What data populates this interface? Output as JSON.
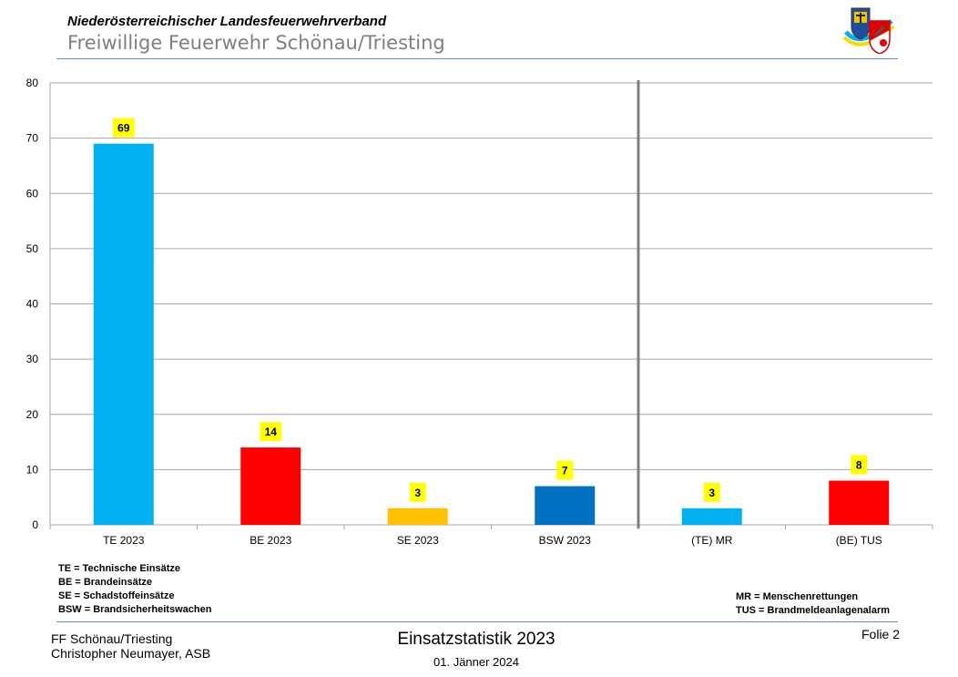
{
  "header": {
    "organization": "Niederösterreichischer  Landesfeuerwehrverband",
    "unit": "Freiwillige Feuerwehr Schönau/Triesting"
  },
  "chart_data": {
    "type": "bar",
    "categories": [
      "TE 2023",
      "BE 2023",
      "SE 2023",
      "BSW 2023",
      "(TE) MR",
      "(BE) TUS"
    ],
    "values": [
      69,
      14,
      3,
      7,
      3,
      8
    ],
    "colors": [
      "#00b0f0",
      "#ff0000",
      "#ffc000",
      "#0070c0",
      "#00b0f0",
      "#ff0000"
    ],
    "data_label_background": "#ffff00",
    "ylim": [
      0,
      80
    ],
    "yticks": [
      0,
      10,
      20,
      30,
      40,
      50,
      60,
      70,
      80
    ],
    "grid": true,
    "separator_after_category": 4,
    "title": "",
    "xlabel": "",
    "ylabel": ""
  },
  "legend_left": [
    "TE = Technische Einsätze",
    "BE = Brandeinsätze",
    "SE = Schadstoffeinsätze",
    "BSW = Brandsicherheitswachen"
  ],
  "legend_right": [
    "MR = Menschenrettungen",
    "TUS = Brandmeldeanlagenalarm"
  ],
  "footer": {
    "author_line1": "FF Schönau/Triesting",
    "author_line2": "Christopher Neumayer, ASB",
    "title": "Einsatzstatistik 2023",
    "date": "01. Jänner 2024",
    "slide": "Folie 2"
  },
  "colors": {
    "rule": "#6d8fb3",
    "grid": "#a6a6a6",
    "separator": "#7f7f7f"
  }
}
